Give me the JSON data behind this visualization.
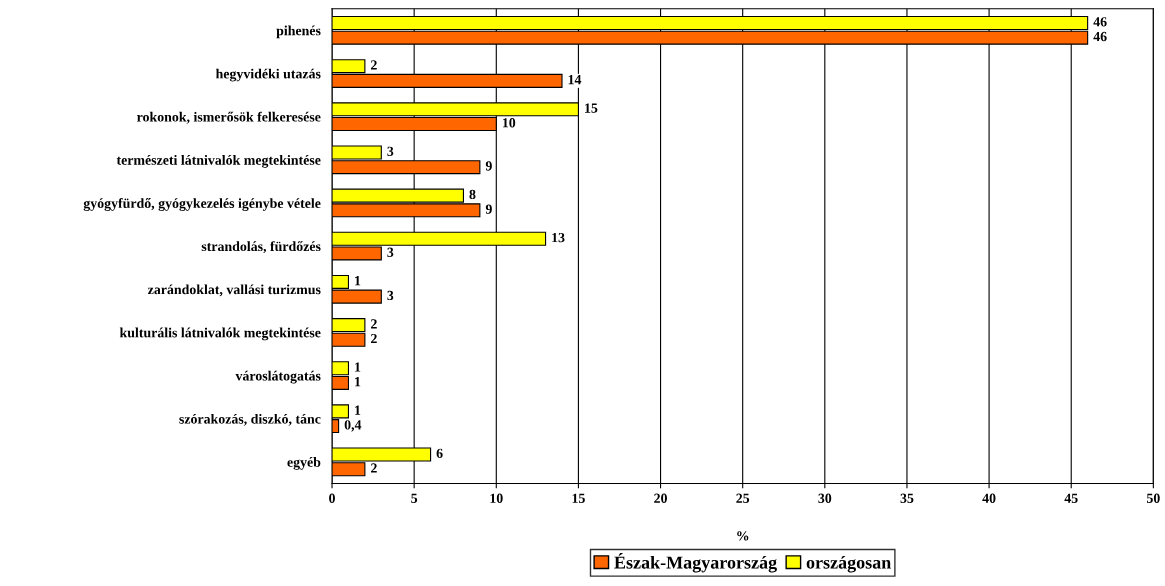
{
  "chart_data": {
    "type": "bar",
    "orientation": "horizontal",
    "xlabel": "%",
    "categories": [
      "pihenés",
      "hegyvidéki utazás",
      "rokonok, ismerősök felkeresése",
      "természeti látnivalók megtekintése",
      "gyógyfürdő, gyógykezelés igénybe vétele",
      "strandolás, fürdőzés",
      "zarándoklat, vallási turizmus",
      "kulturális látnivalók megtekintése",
      "városlátogatás",
      "szórakozás, diszkó, tánc",
      "egyéb"
    ],
    "series": [
      {
        "name": "Észak-Magyarország",
        "color": "#ff6600",
        "values": [
          46,
          14,
          10,
          9,
          9,
          3,
          3,
          2,
          1,
          0.4,
          2
        ],
        "value_labels": [
          "46",
          "14",
          "10",
          "9",
          "9",
          "3",
          "3",
          "2",
          "1",
          "0,4",
          "2"
        ]
      },
      {
        "name": "országosan",
        "color": "#ffff00",
        "values": [
          46,
          2,
          15,
          3,
          8,
          13,
          1,
          2,
          1,
          1,
          6
        ],
        "value_labels": [
          "46",
          "2",
          "15",
          "3",
          "8",
          "13",
          "1",
          "2",
          "1",
          "1",
          "6"
        ]
      }
    ],
    "xlim": [
      0,
      50
    ],
    "xticks": [
      0,
      5,
      10,
      15,
      20,
      25,
      30,
      35,
      40,
      45,
      50
    ],
    "grid": "x",
    "legend": "bottom"
  }
}
